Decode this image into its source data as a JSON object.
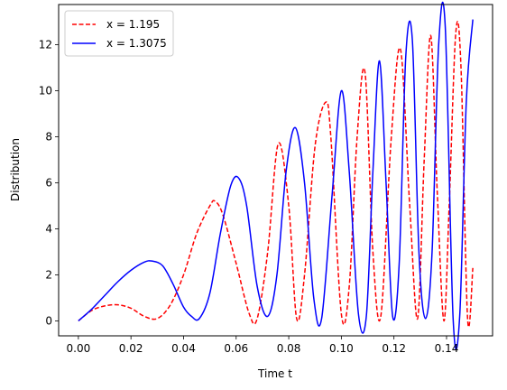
{
  "chart_data": {
    "type": "line",
    "title": "",
    "xlabel": "Time t",
    "ylabel": "Distribution",
    "xlim": [
      -0.0075,
      0.1575
    ],
    "ylim": [
      -0.65,
      13.75
    ],
    "xticks": [
      "0.00",
      "0.02",
      "0.04",
      "0.06",
      "0.08",
      "0.10",
      "0.12",
      "0.14"
    ],
    "xtick_values": [
      0.0,
      0.02,
      0.04,
      0.06,
      0.08,
      0.1,
      0.12,
      0.14
    ],
    "yticks": [
      "0",
      "2",
      "4",
      "6",
      "8",
      "10",
      "12"
    ],
    "ytick_values": [
      0,
      2,
      4,
      6,
      8,
      10,
      12
    ],
    "grid": false,
    "legend_position": "top-left",
    "series": [
      {
        "name": "x = 1.195",
        "color": "#ff0000",
        "dash": "dashed",
        "x": [
          0.0,
          0.005,
          0.01,
          0.015,
          0.02,
          0.025,
          0.03,
          0.035,
          0.04,
          0.045,
          0.05,
          0.052,
          0.055,
          0.06,
          0.065,
          0.068,
          0.072,
          0.076,
          0.08,
          0.083,
          0.086,
          0.09,
          0.094,
          0.096,
          0.1,
          0.103,
          0.106,
          0.109,
          0.112,
          0.115,
          0.119,
          0.1225,
          0.126,
          0.129,
          0.1315,
          0.134,
          0.1365,
          0.139,
          0.141,
          0.1435,
          0.1455,
          0.148,
          0.15
        ],
        "y": [
          0.0,
          0.45,
          0.65,
          0.7,
          0.55,
          0.2,
          0.1,
          0.7,
          2.0,
          3.8,
          5.0,
          5.2,
          4.6,
          2.5,
          0.3,
          0.1,
          3.0,
          7.7,
          5.0,
          0.1,
          2.0,
          7.6,
          9.5,
          8.0,
          0.3,
          1.5,
          8.0,
          10.8,
          3.0,
          0.2,
          8.0,
          11.8,
          5.0,
          0.1,
          7.0,
          12.4,
          5.5,
          0.0,
          5.0,
          12.5,
          11.0,
          0.1,
          2.3
        ]
      },
      {
        "name": "x = 1.3075",
        "color": "#0000ff",
        "dash": "solid",
        "x": [
          0.0,
          0.005,
          0.01,
          0.015,
          0.02,
          0.025,
          0.028,
          0.032,
          0.036,
          0.04,
          0.043,
          0.046,
          0.05,
          0.054,
          0.058,
          0.061,
          0.064,
          0.068,
          0.072,
          0.0755,
          0.079,
          0.0825,
          0.086,
          0.0895,
          0.0925,
          0.0965,
          0.1,
          0.103,
          0.1065,
          0.1095,
          0.112,
          0.1145,
          0.117,
          0.1195,
          0.122,
          0.1245,
          0.127,
          0.1295,
          0.132,
          0.1345,
          0.137,
          0.1395,
          0.1425,
          0.145,
          0.1475,
          0.15
        ],
        "y": [
          0.0,
          0.5,
          1.1,
          1.7,
          2.2,
          2.55,
          2.6,
          2.4,
          1.6,
          0.6,
          0.2,
          0.1,
          1.2,
          3.8,
          5.9,
          6.2,
          5.0,
          1.5,
          0.2,
          2.0,
          6.5,
          8.4,
          6.0,
          1.0,
          0.1,
          5.5,
          10.0,
          6.5,
          0.3,
          0.2,
          6.5,
          11.3,
          6.0,
          0.2,
          2.5,
          11.5,
          12.2,
          3.0,
          0.1,
          3.0,
          12.0,
          12.8,
          0.1,
          0.2,
          9.5,
          13.1
        ]
      }
    ]
  }
}
